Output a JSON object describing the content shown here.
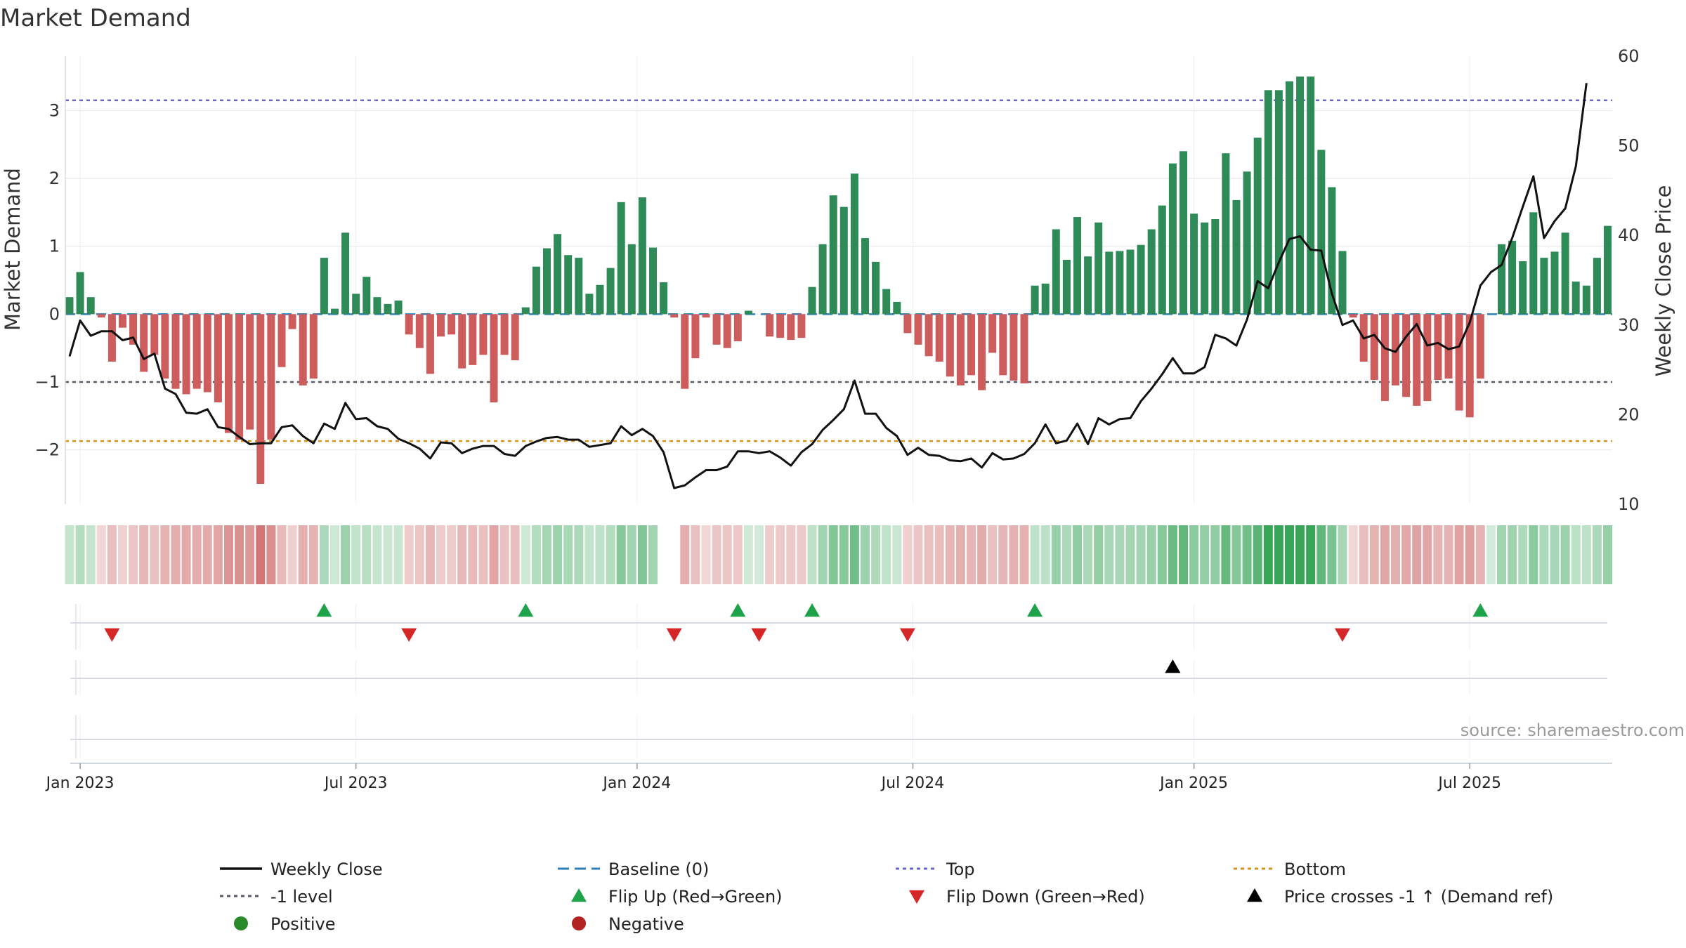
{
  "chart_data": {
    "type": "bar+line",
    "title": "Market Demand",
    "ylabel_left": "Market Demand",
    "ylabel_right": "Weekly Close Price",
    "ylim_left": [
      -2.8,
      3.8
    ],
    "ylim_right": [
      10,
      60
    ],
    "yticks_left": [
      3,
      2,
      1,
      0,
      -1,
      -2
    ],
    "yticks_left_labels": [
      "3",
      "2",
      "1",
      "0",
      "−1",
      "−2"
    ],
    "yticks_right": [
      60,
      50,
      40,
      30,
      20,
      10
    ],
    "yticks_right_labels": [
      "60",
      "50",
      "40",
      "30",
      "20",
      "10"
    ],
    "x_start": "2022-12-26",
    "weeks": 146,
    "x_ticks": [
      "Jan 2023",
      "Jul 2023",
      "Jan 2024",
      "Jul 2024",
      "Jan 2025",
      "Jul 2025"
    ],
    "x_tick_week_positions": [
      1,
      27,
      53.5,
      79.5,
      106,
      132
    ],
    "reference_lines": {
      "top": 3.15,
      "minus_one": -1,
      "bottom": -1.87,
      "baseline": 0
    },
    "demand": [
      0.25,
      0.62,
      0.25,
      -0.05,
      -0.7,
      -0.2,
      -0.45,
      -0.85,
      -0.6,
      -0.95,
      -1.1,
      -1.18,
      -1.1,
      -1.15,
      -1.3,
      -1.75,
      -1.85,
      -1.7,
      -2.5,
      -1.85,
      -0.78,
      -0.22,
      -1.05,
      -0.95,
      0.83,
      0.08,
      1.2,
      0.3,
      0.55,
      0.25,
      0.15,
      0.2,
      -0.3,
      -0.5,
      -0.88,
      -0.33,
      -0.3,
      -0.8,
      -0.75,
      -0.6,
      -1.3,
      -0.6,
      -0.68,
      0.1,
      0.7,
      0.97,
      1.18,
      0.87,
      0.83,
      0.3,
      0.43,
      0.68,
      1.65,
      1.03,
      1.72,
      0.98,
      0.47,
      -0.05,
      -1.1,
      -0.65,
      -0.05,
      -0.45,
      -0.5,
      -0.4,
      0.05,
      0.0,
      -0.33,
      -0.35,
      -0.38,
      -0.35,
      0.4,
      1.03,
      1.75,
      1.58,
      2.07,
      1.12,
      0.77,
      0.37,
      0.18,
      -0.28,
      -0.45,
      -0.62,
      -0.7,
      -0.92,
      -1.05,
      -0.9,
      -1.12,
      -0.57,
      -0.9,
      -0.98,
      -1.02,
      0.42,
      0.45,
      1.25,
      0.8,
      1.43,
      0.85,
      1.35,
      0.92,
      0.93,
      0.95,
      1.02,
      1.25,
      1.6,
      2.22,
      2.4,
      1.48,
      1.35,
      1.4,
      2.37,
      1.68,
      2.1,
      2.6,
      3.3,
      3.3,
      3.43,
      3.5,
      3.5,
      2.42,
      1.87,
      0.93,
      -0.05,
      -0.7,
      -0.97,
      -1.28,
      -1.05,
      -1.22,
      -1.35,
      -1.28,
      -0.97,
      -0.95,
      -1.42,
      -1.52,
      -0.95,
      0.0,
      1.03,
      1.08,
      0.78,
      1.5,
      0.83,
      0.92,
      1.2,
      0.48,
      0.42,
      0.83,
      1.3
    ],
    "weekly_close": [
      26.5,
      30.5,
      28.8,
      29.3,
      29.3,
      28.3,
      28.6,
      26.2,
      26.8,
      22.9,
      22.3,
      20.2,
      20.1,
      20.6,
      18.6,
      18.4,
      17.5,
      16.7,
      16.8,
      16.8,
      18.6,
      18.8,
      17.6,
      16.8,
      19.0,
      18.4,
      21.3,
      19.5,
      19.6,
      18.7,
      18.4,
      17.3,
      16.8,
      16.2,
      15.1,
      16.9,
      16.8,
      15.7,
      16.2,
      16.5,
      16.5,
      15.6,
      15.4,
      16.5,
      17.0,
      17.4,
      17.5,
      17.2,
      17.2,
      16.4,
      16.6,
      16.8,
      18.7,
      17.7,
      18.4,
      17.6,
      15.8,
      11.8,
      12.1,
      13.0,
      13.8,
      13.8,
      14.2,
      15.9,
      15.9,
      15.7,
      15.9,
      15.2,
      14.3,
      15.8,
      16.7,
      18.3,
      19.4,
      20.6,
      23.8,
      20.1,
      20.1,
      18.5,
      17.6,
      15.5,
      16.3,
      15.5,
      15.4,
      14.9,
      14.8,
      15.1,
      14.1,
      15.7,
      15.0,
      15.1,
      15.6,
      16.8,
      18.9,
      16.8,
      17.1,
      19.0,
      16.7,
      19.6,
      18.9,
      19.5,
      19.6,
      21.5,
      22.9,
      24.5,
      26.3,
      24.6,
      24.6,
      25.3,
      28.9,
      28.5,
      27.7,
      30.6,
      34.9,
      34.1,
      37.0,
      39.6,
      39.9,
      38.4,
      38.3,
      33.5,
      30.0,
      30.5,
      28.5,
      28.9,
      27.4,
      27.0,
      28.7,
      30.1,
      27.7,
      28.0,
      27.3,
      27.6,
      30.3,
      34.4,
      35.9,
      36.7,
      39.7,
      43.2,
      46.6,
      39.7,
      41.6,
      43.0,
      47.7,
      57.0
    ],
    "heat_gaps": [
      56,
      57
    ],
    "flip_up_weeks": [
      24,
      43,
      63,
      70,
      91,
      133
    ],
    "flip_down_weeks": [
      4,
      32,
      57,
      65,
      79,
      120
    ],
    "price_cross_weeks": [
      104
    ],
    "source_note": "source: sharemaestro.com",
    "legend": [
      {
        "label": "Weekly Close",
        "kind": "line-solid",
        "color": "#111111"
      },
      {
        "label": "Baseline (0)",
        "kind": "line-dashed",
        "color": "#2e7fb8"
      },
      {
        "label": "Top",
        "kind": "line-dotted",
        "color": "#6b66cc"
      },
      {
        "label": "Bottom",
        "kind": "line-dotted",
        "color": "#d6901e"
      },
      {
        "label": "-1 level",
        "kind": "line-dotted",
        "color": "#5a5a6a"
      },
      {
        "label": "Flip Up (Red→Green)",
        "kind": "tri-up",
        "color": "#1ea34a"
      },
      {
        "label": "Flip Down (Green→Red)",
        "kind": "tri-down",
        "color": "#d62728"
      },
      {
        "label": "Price crosses -1 ↑ (Demand ref)",
        "kind": "tri-up",
        "color": "#000000"
      },
      {
        "label": "Positive",
        "kind": "dot",
        "color": "#2a8a2a"
      },
      {
        "label": "Negative",
        "kind": "dot",
        "color": "#b22222"
      }
    ],
    "colors": {
      "positive_bar": "#2e8b57",
      "negative_bar": "#cd5c5c",
      "grid": "#e6e6e6"
    }
  }
}
